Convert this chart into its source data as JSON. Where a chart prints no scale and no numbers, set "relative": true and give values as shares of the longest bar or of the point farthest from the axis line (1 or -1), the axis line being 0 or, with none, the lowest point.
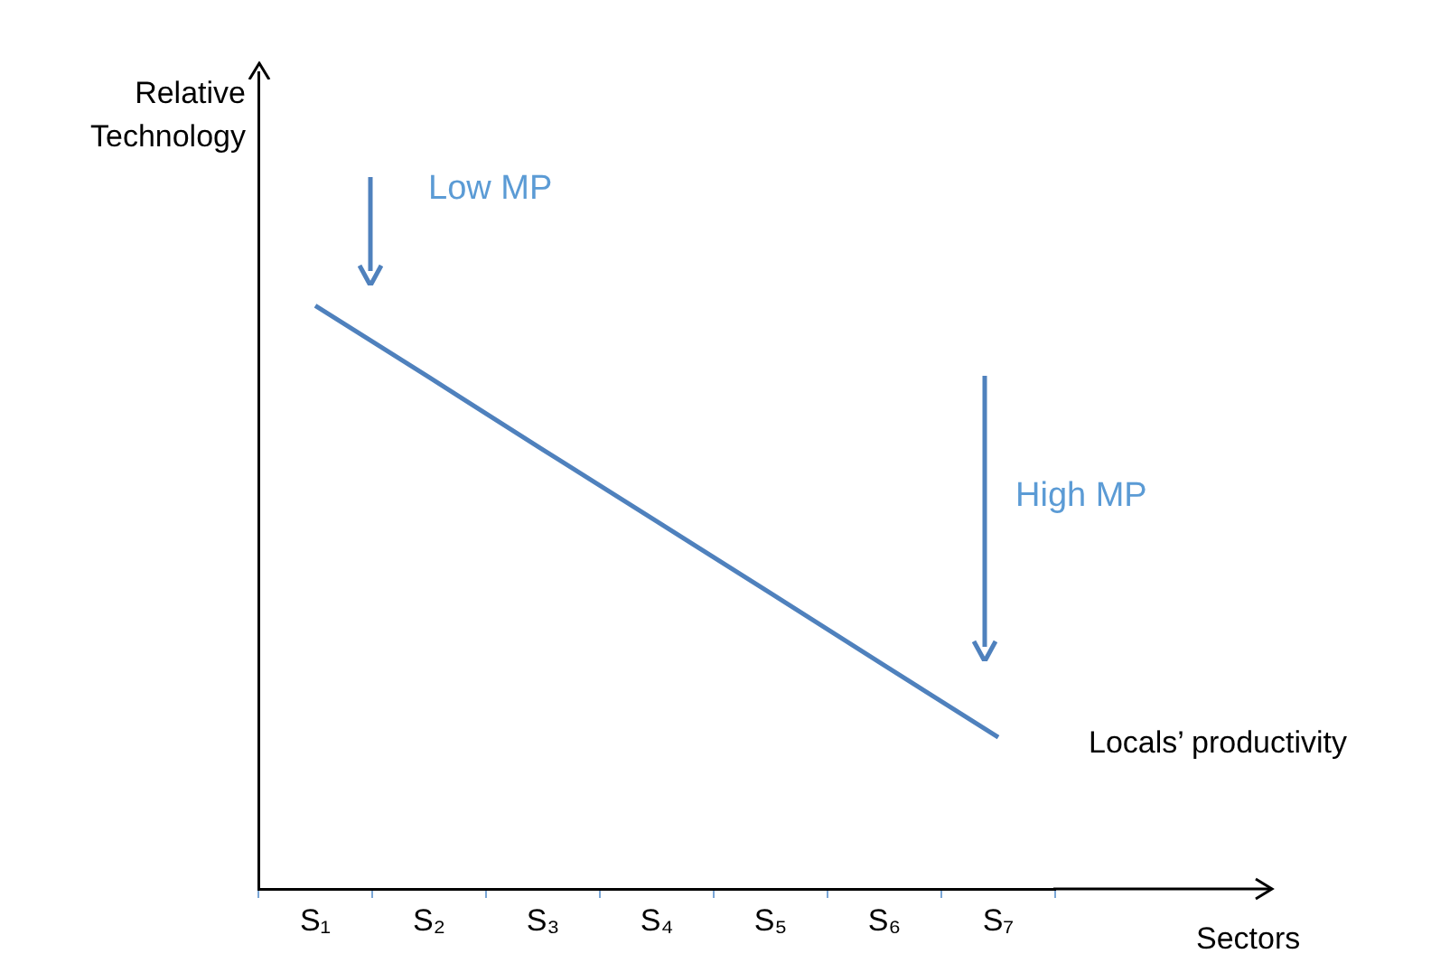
{
  "chart_data": {
    "type": "line",
    "relative": true,
    "xlabel": "Sectors",
    "ylabel": "Relative Technology",
    "categories": [
      "S₁",
      "S₂",
      "S₃",
      "S₄",
      "S₅",
      "S₆",
      "S₇"
    ],
    "series": [
      {
        "name": "Locals’ productivity",
        "color": "#4f81bd",
        "values": [
          1,
          0.877,
          0.753,
          0.63,
          0.507,
          0.383,
          0.26
        ]
      }
    ],
    "annotations": [
      "Low MP",
      "High MP"
    ]
  }
}
